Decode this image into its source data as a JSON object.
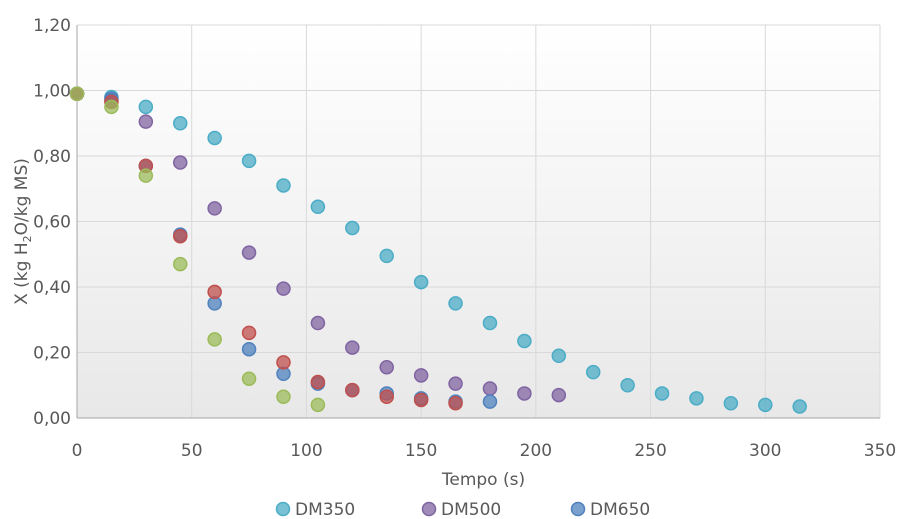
{
  "chart_data": {
    "type": "scatter",
    "title": "",
    "xlabel": "Tempo (s)",
    "ylabel_parts": [
      "X (kg H",
      "2",
      "O/kg MS)"
    ],
    "xlim": [
      0,
      350
    ],
    "ylim": [
      0,
      1.2
    ],
    "x_ticks": [
      "0",
      "50",
      "100",
      "150",
      "200",
      "250",
      "300",
      "350"
    ],
    "y_ticks": [
      "0,00",
      "0,20",
      "0,40",
      "0,60",
      "0,80",
      "1,00",
      "1,20"
    ],
    "grid": true,
    "legend_position": "bottom",
    "legend_visible_names": [
      "DM350",
      "DM500",
      "DM650"
    ],
    "series": [
      {
        "name": "DM350",
        "color": "#4bacc6",
        "x": [
          0,
          15,
          30,
          45,
          60,
          75,
          90,
          105,
          120,
          135,
          150,
          165,
          180,
          195,
          210,
          225,
          240,
          255,
          270,
          285,
          300,
          315
        ],
        "y": [
          0.99,
          0.98,
          0.95,
          0.9,
          0.855,
          0.785,
          0.71,
          0.645,
          0.58,
          0.495,
          0.415,
          0.35,
          0.29,
          0.235,
          0.19,
          0.14,
          0.1,
          0.075,
          0.06,
          0.045,
          0.04,
          0.035
        ]
      },
      {
        "name": "DM500",
        "color": "#8064a2",
        "x": [
          0,
          15,
          30,
          45,
          60,
          75,
          90,
          105,
          120,
          135,
          150,
          165,
          180,
          195,
          210
        ],
        "y": [
          0.99,
          0.97,
          0.905,
          0.78,
          0.64,
          0.505,
          0.395,
          0.29,
          0.215,
          0.155,
          0.13,
          0.105,
          0.09,
          0.075,
          0.07
        ]
      },
      {
        "name": "DM650",
        "color": "#4f81bd",
        "x": [
          0,
          15,
          30,
          45,
          60,
          75,
          90,
          105,
          120,
          135,
          150,
          165,
          180
        ],
        "y": [
          0.99,
          0.975,
          0.77,
          0.56,
          0.35,
          0.21,
          0.135,
          0.105,
          0.085,
          0.075,
          0.06,
          0.05,
          0.05
        ]
      },
      {
        "name": "",
        "color": "#c0504d",
        "x": [
          0,
          15,
          30,
          45,
          60,
          75,
          90,
          105,
          120,
          135,
          150,
          165
        ],
        "y": [
          0.99,
          0.965,
          0.77,
          0.555,
          0.385,
          0.26,
          0.17,
          0.11,
          0.085,
          0.065,
          0.055,
          0.045
        ]
      },
      {
        "name": "",
        "color": "#9bbb59",
        "x": [
          0,
          15,
          30,
          45,
          60,
          75,
          90,
          105
        ],
        "y": [
          0.99,
          0.95,
          0.74,
          0.47,
          0.24,
          0.12,
          0.065,
          0.04
        ]
      }
    ]
  }
}
